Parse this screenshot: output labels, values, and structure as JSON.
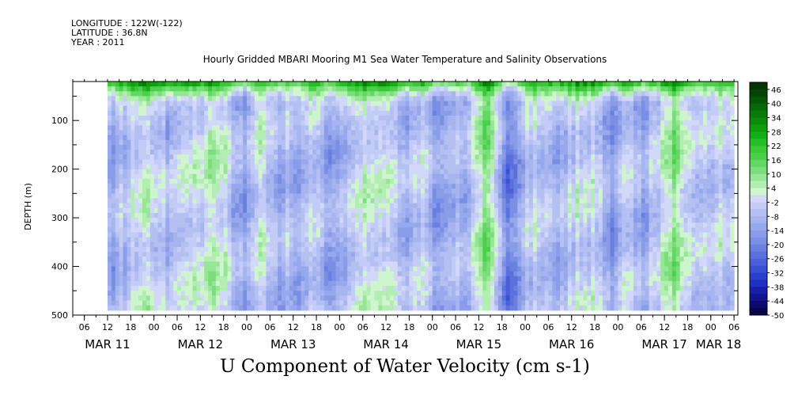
{
  "metadata": {
    "longitude": "LONGITUDE : 122W(-122)",
    "latitude": "LATITUDE : 36.8N",
    "year": "YEAR : 2011"
  },
  "chart_data": {
    "type": "heatmap",
    "title": "Hourly Gridded MBARI Mooring M1 Sea Water Temperature and Salinity Observations",
    "bottom_title": "U Component of Water Velocity (cm s-1)",
    "ylabel": "DEPTH (m)",
    "xlabel": "",
    "x_axis": {
      "start": "2011-03-11T03:00",
      "end": "2011-03-18T07:00",
      "data_start": "2011-03-11T12:00",
      "hour_tick_labels": [
        "06",
        "12",
        "18",
        "00",
        "06",
        "12",
        "18",
        "00",
        "06",
        "12",
        "18",
        "00",
        "06",
        "12",
        "18",
        "00",
        "06",
        "12",
        "18",
        "00",
        "06",
        "12",
        "18",
        "00",
        "06",
        "12",
        "18",
        "00",
        "06"
      ],
      "first_hour_tick": "2011-03-11T06:00",
      "date_labels": [
        "MAR 11",
        "MAR 12",
        "MAR 13",
        "MAR 14",
        "MAR 15",
        "MAR 16",
        "MAR 17",
        "MAR 18"
      ]
    },
    "y_axis": {
      "range": [
        20,
        500
      ],
      "data_range": [
        20,
        490
      ],
      "inverted": true,
      "tick_labels": [
        "100",
        "200",
        "300",
        "400",
        "500"
      ],
      "tick_values": [
        100,
        200,
        300,
        400,
        500
      ]
    },
    "colorbar": {
      "labels": [
        "46",
        "40",
        "34",
        "28",
        "22",
        "16",
        "10",
        "4",
        "-2",
        "-8",
        "-14",
        "-20",
        "-26",
        "-32",
        "-38",
        "-44",
        "-50"
      ],
      "levels": [
        -50,
        -47,
        -44,
        -41,
        -38,
        -35,
        -32,
        -29,
        -26,
        -23,
        -20,
        -17,
        -14,
        -11,
        -8,
        -5,
        -2,
        1,
        4,
        7,
        10,
        13,
        16,
        19,
        22,
        25,
        28,
        31,
        34,
        37,
        40,
        43,
        46,
        49
      ],
      "colors": [
        "#06064a",
        "#0a0a6e",
        "#101490",
        "#1820a8",
        "#2030c0",
        "#2c40cc",
        "#3a50d4",
        "#4a60d8",
        "#5a70dc",
        "#6a80e0",
        "#7a8ee4",
        "#8a9ce8",
        "#98a8ec",
        "#a6b4f0",
        "#b4c0f2",
        "#c2ccf6",
        "#d2d8f8",
        "#cff5cf",
        "#b2eeb2",
        "#96e696",
        "#7ade7a",
        "#62d862",
        "#4cd04c",
        "#38c838",
        "#26bc26",
        "#16ae16",
        "#0e9e0e",
        "#0a8c0a",
        "#087a08",
        "#066806",
        "#055605",
        "#044404",
        "#033403"
      ]
    },
    "field_description_values": {
      "surface_band_depth_max": 50,
      "surface_mean": 20,
      "deep_mean": -6,
      "amplitude": 14
    }
  }
}
